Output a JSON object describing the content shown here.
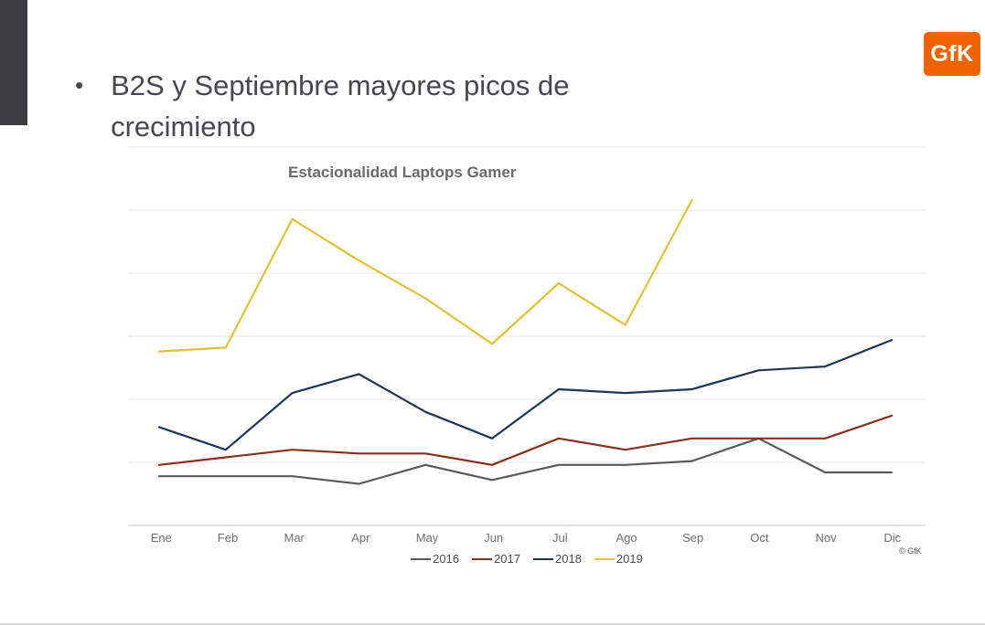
{
  "slide": {
    "bullet": "•",
    "title": "B2S y Septiembre mayores picos de crecimiento",
    "logo_text": "GfK",
    "copyright": "© GfK"
  },
  "chart_data": {
    "type": "line",
    "title": "Estacionalidad Laptops Gamer",
    "categories": [
      "Ene",
      "Feb",
      "Mar",
      "Apr",
      "May",
      "Jun",
      "Jul",
      "Ago",
      "Sep",
      "Oct",
      "Nov",
      "Dic"
    ],
    "series": [
      {
        "name": "2016",
        "color": "#595a5c",
        "values": [
          13,
          13,
          13,
          11,
          16,
          12,
          16,
          16,
          17,
          23,
          14,
          14
        ]
      },
      {
        "name": "2017",
        "color": "#87301f",
        "values": [
          16,
          18,
          20,
          19,
          19,
          16,
          23,
          20,
          23,
          23,
          23,
          29
        ]
      },
      {
        "name": "2018",
        "color": "#1f3554",
        "values": [
          26,
          20,
          35,
          40,
          30,
          23,
          36,
          35,
          36,
          41,
          42,
          49
        ]
      },
      {
        "name": "2019",
        "color": "#e2c233",
        "values": [
          46,
          47,
          81,
          70,
          60,
          48,
          64,
          53,
          86,
          null,
          null,
          null
        ]
      }
    ],
    "ylim": [
      0,
      100
    ],
    "grid": true,
    "gridline_count": 7,
    "legend_position": "bottom",
    "xlabel": "",
    "ylabel": ""
  }
}
